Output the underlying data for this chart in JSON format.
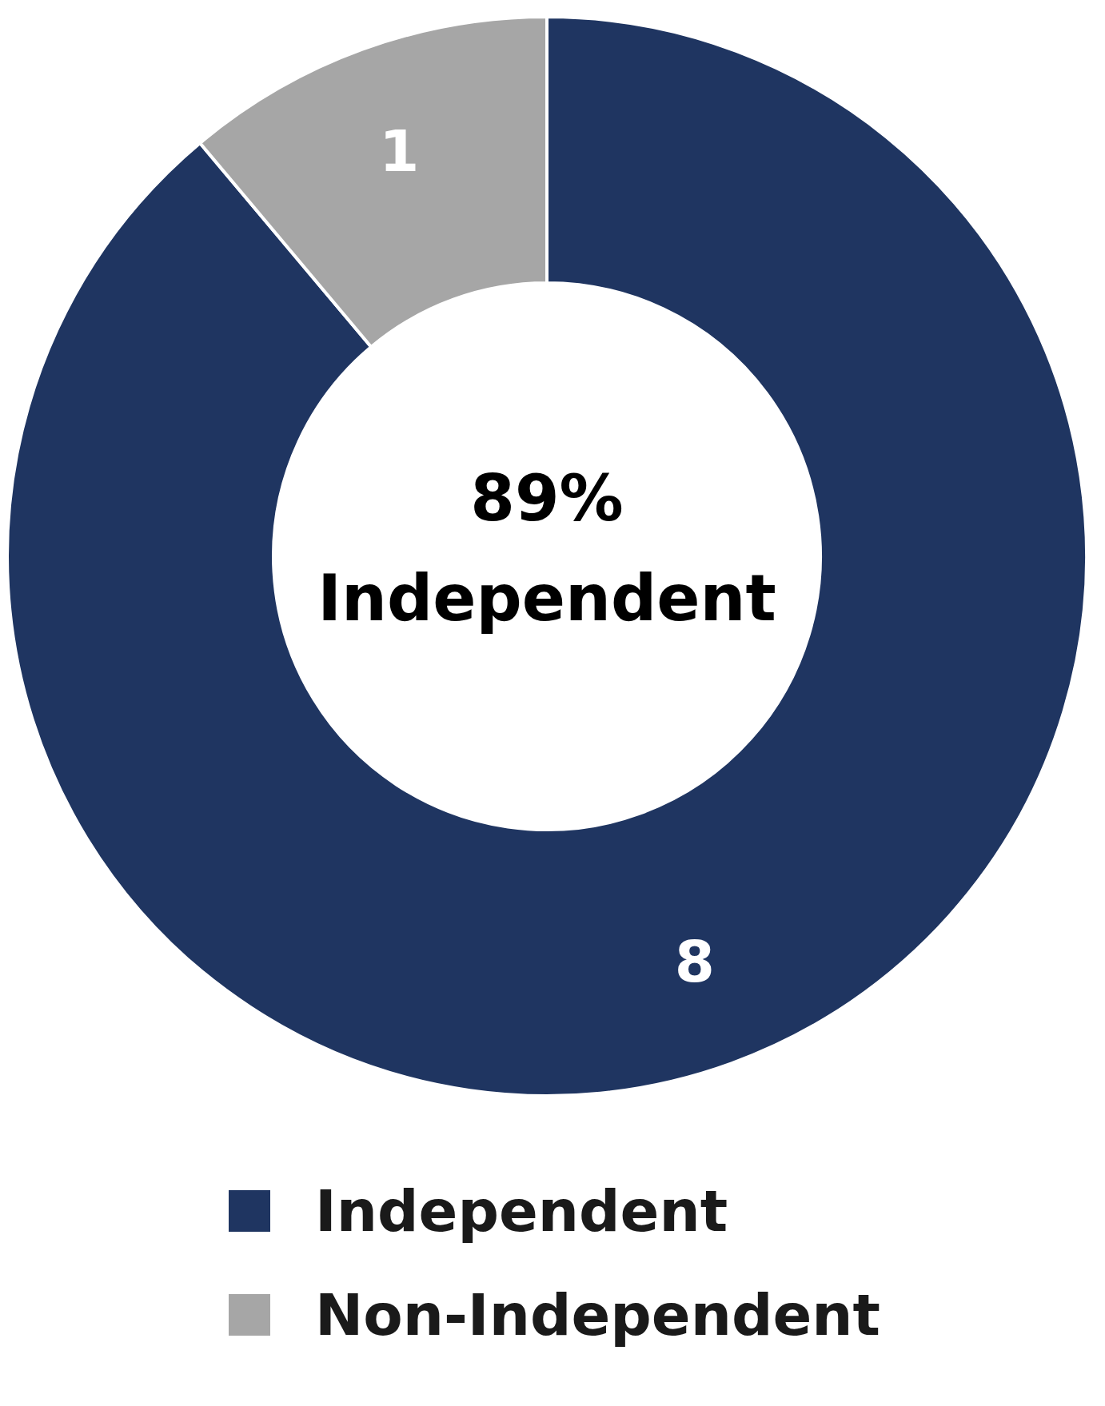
{
  "chart_data": {
    "type": "donut",
    "categories": [
      "Independent",
      "Non-Independent"
    ],
    "values": [
      8,
      1
    ],
    "colors": [
      "#1f3561",
      "#a6a6a6"
    ],
    "data_labels": true,
    "legend": "bottom",
    "annotations": [
      "89%",
      "Independent"
    ]
  }
}
